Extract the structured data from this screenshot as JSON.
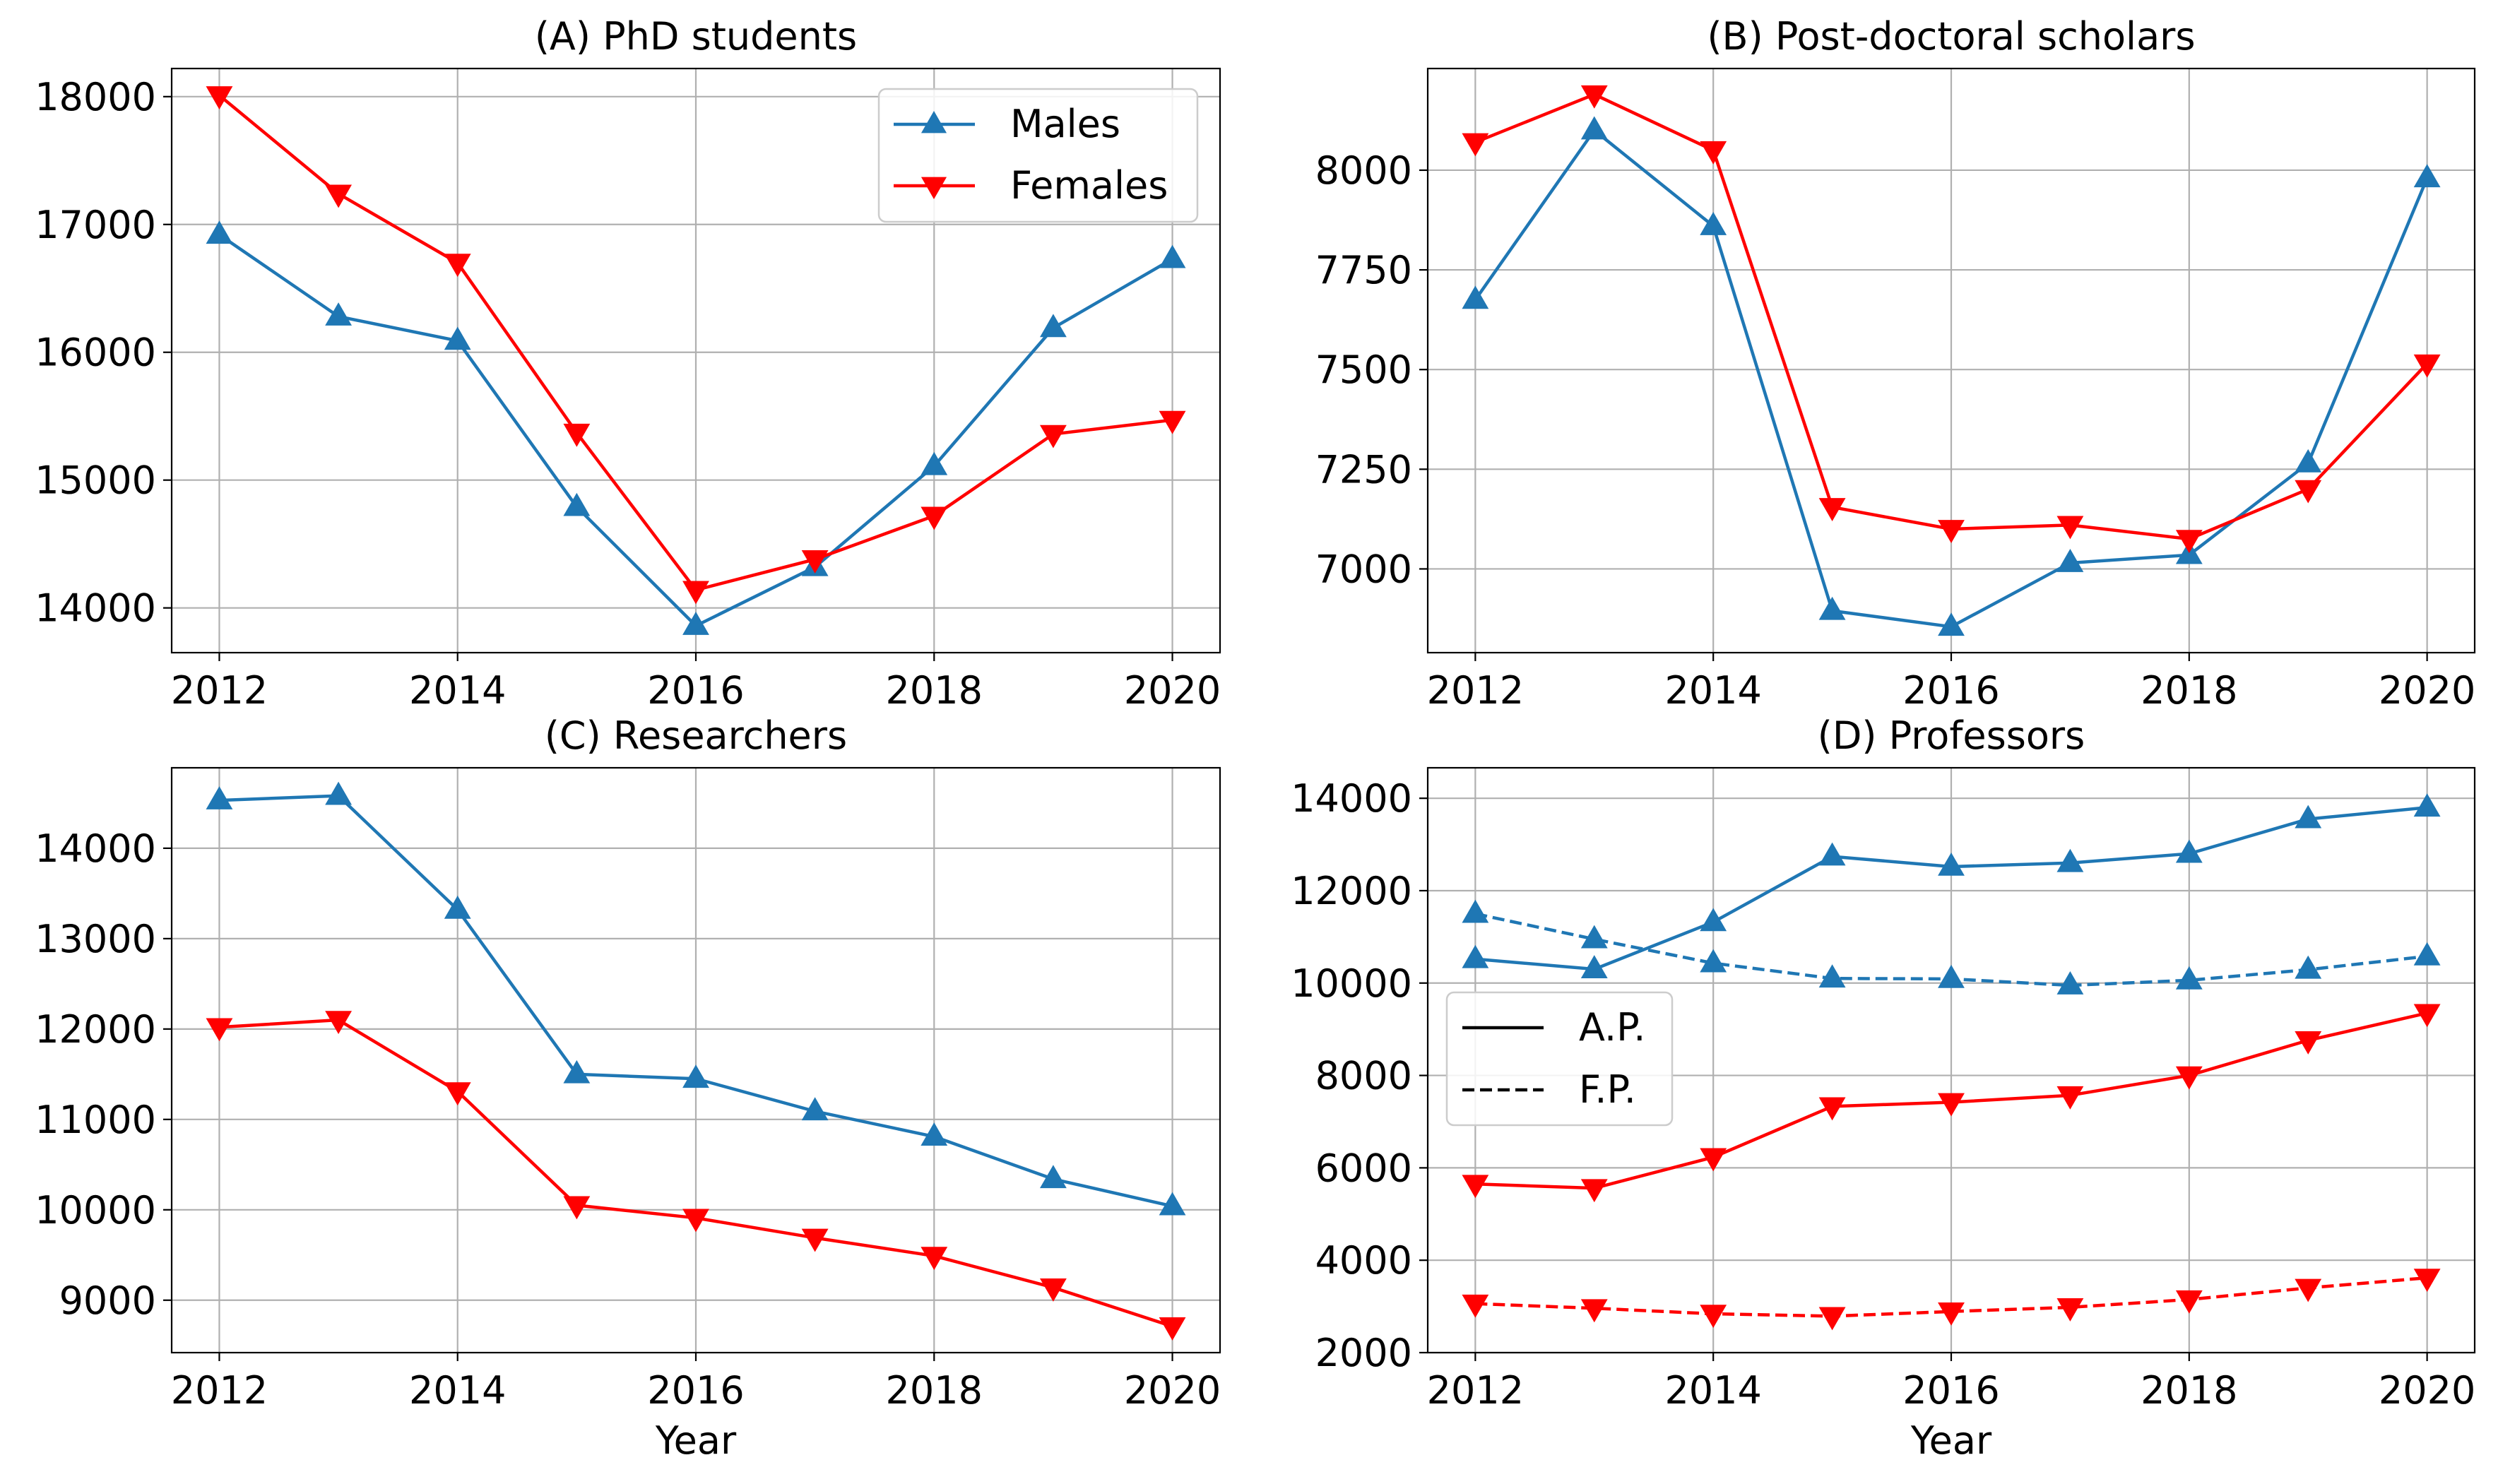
{
  "colors": {
    "males": "#1f77b4",
    "females": "#ff0000"
  },
  "legend_series": [
    {
      "label": "Males",
      "color": "#1f77b4",
      "marker": "triangle-up"
    },
    {
      "label": "Females",
      "color": "#ff0000",
      "marker": "triangle-down"
    }
  ],
  "legend_linestyle": [
    {
      "label": "A.P.",
      "dash": "solid"
    },
    {
      "label": "F.P.",
      "dash": "dashed"
    }
  ],
  "chart_data": [
    {
      "type": "line",
      "title": "(A) PhD students",
      "xlabel": "",
      "ylabel": "",
      "x": [
        2012,
        2013,
        2014,
        2015,
        2016,
        2017,
        2018,
        2019,
        2020
      ],
      "xticks": [
        2012,
        2014,
        2016,
        2018,
        2020
      ],
      "yticks": [
        14000,
        15000,
        16000,
        17000,
        18000
      ],
      "xlim": [
        2011.6,
        2020.4
      ],
      "ylim": [
        13650,
        18220
      ],
      "grid": true,
      "legend": "top-right",
      "series": [
        {
          "name": "Males",
          "color": "#1f77b4",
          "marker": "triangle-up",
          "dash": "solid",
          "values": [
            16920,
            16280,
            16090,
            14790,
            13860,
            14320,
            15110,
            16190,
            16730
          ]
        },
        {
          "name": "Females",
          "color": "#ff0000",
          "marker": "triangle-down",
          "dash": "solid",
          "values": [
            18010,
            17240,
            16700,
            15370,
            14140,
            14380,
            14720,
            15360,
            15470
          ]
        }
      ]
    },
    {
      "type": "line",
      "title": "(B) Post-doctoral scholars",
      "xlabel": "",
      "ylabel": "",
      "x": [
        2012,
        2013,
        2014,
        2015,
        2016,
        2017,
        2018,
        2019,
        2020
      ],
      "xticks": [
        2012,
        2014,
        2016,
        2018,
        2020
      ],
      "yticks": [
        7000,
        7250,
        7500,
        7750,
        8000
      ],
      "xlim": [
        2011.6,
        2020.4
      ],
      "ylim": [
        6790,
        8255
      ],
      "grid": true,
      "series": [
        {
          "name": "Males",
          "color": "#1f77b4",
          "marker": "triangle-up",
          "dash": "solid",
          "values": [
            7675,
            8100,
            7860,
            6895,
            6855,
            7015,
            7035,
            7265,
            7980
          ]
        },
        {
          "name": "Females",
          "color": "#ff0000",
          "marker": "triangle-down",
          "dash": "solid",
          "values": [
            8070,
            8190,
            8050,
            7155,
            7100,
            7110,
            7075,
            7200,
            7515
          ]
        }
      ]
    },
    {
      "type": "line",
      "title": "(C) Researchers",
      "xlabel": "Year",
      "ylabel": "",
      "x": [
        2012,
        2013,
        2014,
        2015,
        2016,
        2017,
        2018,
        2019,
        2020
      ],
      "xticks": [
        2012,
        2014,
        2016,
        2018,
        2020
      ],
      "yticks": [
        9000,
        10000,
        11000,
        12000,
        13000,
        14000
      ],
      "xlim": [
        2011.6,
        2020.4
      ],
      "ylim": [
        8420,
        14890
      ],
      "grid": true,
      "series": [
        {
          "name": "Males",
          "color": "#1f77b4",
          "marker": "triangle-up",
          "dash": "solid",
          "values": [
            14530,
            14580,
            13320,
            11500,
            11450,
            11090,
            10810,
            10340,
            10040
          ]
        },
        {
          "name": "Females",
          "color": "#ff0000",
          "marker": "triangle-down",
          "dash": "solid",
          "values": [
            12020,
            12100,
            11310,
            10050,
            9910,
            9690,
            9490,
            9140,
            8710
          ]
        }
      ]
    },
    {
      "type": "line",
      "title": "(D) Professors",
      "xlabel": "Year",
      "ylabel": "",
      "x": [
        2012,
        2013,
        2014,
        2015,
        2016,
        2017,
        2018,
        2019,
        2020
      ],
      "xticks": [
        2012,
        2014,
        2016,
        2018,
        2020
      ],
      "yticks": [
        2000,
        4000,
        6000,
        8000,
        10000,
        12000,
        14000
      ],
      "xlim": [
        2011.6,
        2020.4
      ],
      "ylim": [
        2000,
        14660
      ],
      "grid": true,
      "legend": "center-left",
      "series": [
        {
          "name": "Males A.P.",
          "color": "#1f77b4",
          "marker": "triangle-up",
          "dash": "solid",
          "values": [
            10520,
            10300,
            11320,
            12740,
            12520,
            12600,
            12800,
            13550,
            13800
          ]
        },
        {
          "name": "Males F.P.",
          "color": "#1f77b4",
          "marker": "triangle-up",
          "dash": "dashed",
          "values": [
            11500,
            10950,
            10430,
            10100,
            10090,
            9950,
            10060,
            10290,
            10580
          ]
        },
        {
          "name": "Females A.P.",
          "color": "#ff0000",
          "marker": "triangle-down",
          "dash": "solid",
          "values": [
            5650,
            5560,
            6230,
            7330,
            7420,
            7570,
            8000,
            8760,
            9350
          ]
        },
        {
          "name": "Females F.P.",
          "color": "#ff0000",
          "marker": "triangle-down",
          "dash": "dashed",
          "values": [
            3060,
            2960,
            2840,
            2790,
            2890,
            2980,
            3150,
            3400,
            3620
          ]
        }
      ]
    }
  ]
}
